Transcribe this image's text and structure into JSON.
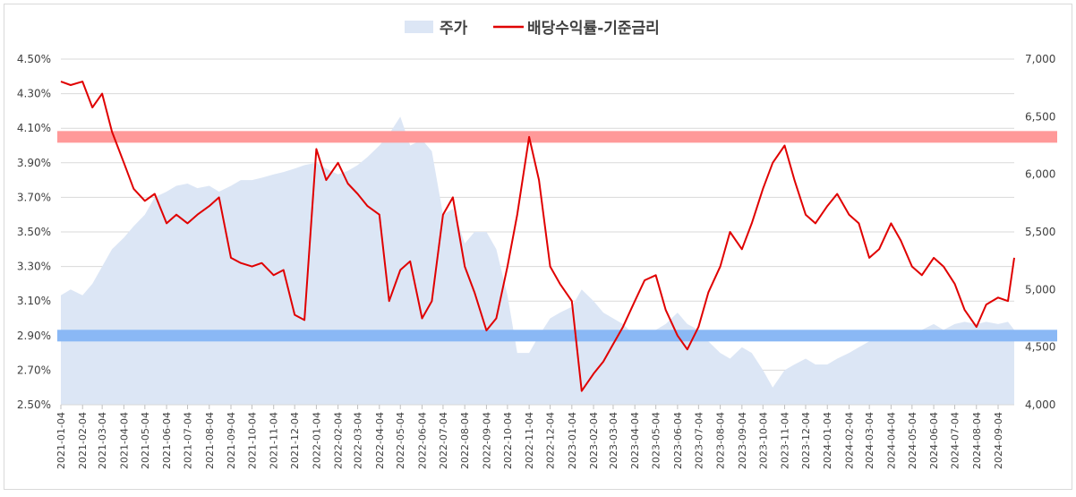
{
  "chart_data": {
    "type": "area",
    "title": "",
    "legend_position": "top-center",
    "grid": true,
    "series": [
      {
        "name": "주가",
        "kind": "area",
        "axis": "right",
        "color": "#dce6f5",
        "points": [
          [
            "2021-01-04",
            4950
          ],
          [
            "2021-01-18",
            5000
          ],
          [
            "2021-02-04",
            4950
          ],
          [
            "2021-02-18",
            5050
          ],
          [
            "2021-03-04",
            5200
          ],
          [
            "2021-03-18",
            5350
          ],
          [
            "2021-04-04",
            5450
          ],
          [
            "2021-04-18",
            5550
          ],
          [
            "2021-05-04",
            5650
          ],
          [
            "2021-05-18",
            5800
          ],
          [
            "2021-06-04",
            5850
          ],
          [
            "2021-06-18",
            5900
          ],
          [
            "2021-07-04",
            5920
          ],
          [
            "2021-07-18",
            5880
          ],
          [
            "2021-08-04",
            5900
          ],
          [
            "2021-08-18",
            5850
          ],
          [
            "2021-09-04",
            5900
          ],
          [
            "2021-09-18",
            5950
          ],
          [
            "2021-10-04",
            5950
          ],
          [
            "2021-10-18",
            5970
          ],
          [
            "2021-11-04",
            6000
          ],
          [
            "2021-11-18",
            6020
          ],
          [
            "2021-12-04",
            6050
          ],
          [
            "2021-12-18",
            6080
          ],
          [
            "2022-01-04",
            6100
          ],
          [
            "2022-01-18",
            6050
          ],
          [
            "2022-02-04",
            6000
          ],
          [
            "2022-02-18",
            6030
          ],
          [
            "2022-03-04",
            6080
          ],
          [
            "2022-03-18",
            6150
          ],
          [
            "2022-04-04",
            6250
          ],
          [
            "2022-04-18",
            6350
          ],
          [
            "2022-05-04",
            6500
          ],
          [
            "2022-05-18",
            6250
          ],
          [
            "2022-06-04",
            6300
          ],
          [
            "2022-06-18",
            6200
          ],
          [
            "2022-07-04",
            5650
          ],
          [
            "2022-07-18",
            5700
          ],
          [
            "2022-08-04",
            5400
          ],
          [
            "2022-08-18",
            5500
          ],
          [
            "2022-09-04",
            5500
          ],
          [
            "2022-09-18",
            5350
          ],
          [
            "2022-10-04",
            4950
          ],
          [
            "2022-10-18",
            4450
          ],
          [
            "2022-11-04",
            4450
          ],
          [
            "2022-11-18",
            4600
          ],
          [
            "2022-12-04",
            4750
          ],
          [
            "2022-12-18",
            4800
          ],
          [
            "2023-01-04",
            4850
          ],
          [
            "2023-01-18",
            5000
          ],
          [
            "2023-02-04",
            4900
          ],
          [
            "2023-02-18",
            4800
          ],
          [
            "2023-03-04",
            4750
          ],
          [
            "2023-03-18",
            4700
          ],
          [
            "2023-04-04",
            4600
          ],
          [
            "2023-04-18",
            4550
          ],
          [
            "2023-05-04",
            4650
          ],
          [
            "2023-05-18",
            4700
          ],
          [
            "2023-06-04",
            4800
          ],
          [
            "2023-06-18",
            4700
          ],
          [
            "2023-07-04",
            4650
          ],
          [
            "2023-07-18",
            4550
          ],
          [
            "2023-08-04",
            4450
          ],
          [
            "2023-08-18",
            4400
          ],
          [
            "2023-09-04",
            4500
          ],
          [
            "2023-09-18",
            4450
          ],
          [
            "2023-10-04",
            4300
          ],
          [
            "2023-10-18",
            4150
          ],
          [
            "2023-11-04",
            4300
          ],
          [
            "2023-11-18",
            4350
          ],
          [
            "2023-12-04",
            4400
          ],
          [
            "2023-12-18",
            4350
          ],
          [
            "2024-01-04",
            4350
          ],
          [
            "2024-01-18",
            4400
          ],
          [
            "2024-02-04",
            4450
          ],
          [
            "2024-02-18",
            4500
          ],
          [
            "2024-03-04",
            4550
          ],
          [
            "2024-03-18",
            4600
          ],
          [
            "2024-04-04",
            4600
          ],
          [
            "2024-04-18",
            4550
          ],
          [
            "2024-05-04",
            4600
          ],
          [
            "2024-05-18",
            4650
          ],
          [
            "2024-06-04",
            4700
          ],
          [
            "2024-06-18",
            4650
          ],
          [
            "2024-07-04",
            4700
          ],
          [
            "2024-07-18",
            4720
          ],
          [
            "2024-08-04",
            4700
          ],
          [
            "2024-08-18",
            4720
          ],
          [
            "2024-09-04",
            4700
          ],
          [
            "2024-09-18",
            4720
          ],
          [
            "2024-09-27",
            4650
          ]
        ]
      },
      {
        "name": "배당수익률-기준금리",
        "kind": "line",
        "axis": "left",
        "color": "#e00000",
        "points": [
          [
            "2021-01-04",
            4.37
          ],
          [
            "2021-01-18",
            4.35
          ],
          [
            "2021-02-04",
            4.37
          ],
          [
            "2021-02-18",
            4.22
          ],
          [
            "2021-03-04",
            4.3
          ],
          [
            "2021-03-18",
            4.08
          ],
          [
            "2021-04-04",
            3.9
          ],
          [
            "2021-04-18",
            3.75
          ],
          [
            "2021-05-04",
            3.68
          ],
          [
            "2021-05-18",
            3.72
          ],
          [
            "2021-06-04",
            3.55
          ],
          [
            "2021-06-18",
            3.6
          ],
          [
            "2021-07-04",
            3.55
          ],
          [
            "2021-07-18",
            3.6
          ],
          [
            "2021-08-04",
            3.65
          ],
          [
            "2021-08-18",
            3.7
          ],
          [
            "2021-09-04",
            3.35
          ],
          [
            "2021-09-18",
            3.32
          ],
          [
            "2021-10-04",
            3.3
          ],
          [
            "2021-10-18",
            3.32
          ],
          [
            "2021-11-04",
            3.25
          ],
          [
            "2021-11-18",
            3.28
          ],
          [
            "2021-12-04",
            3.02
          ],
          [
            "2021-12-18",
            2.99
          ],
          [
            "2022-01-04",
            3.98
          ],
          [
            "2022-01-18",
            3.8
          ],
          [
            "2022-02-04",
            3.9
          ],
          [
            "2022-02-18",
            3.78
          ],
          [
            "2022-03-04",
            3.72
          ],
          [
            "2022-03-18",
            3.65
          ],
          [
            "2022-04-04",
            3.6
          ],
          [
            "2022-04-18",
            3.1
          ],
          [
            "2022-05-04",
            3.28
          ],
          [
            "2022-05-18",
            3.33
          ],
          [
            "2022-06-04",
            3.0
          ],
          [
            "2022-06-18",
            3.1
          ],
          [
            "2022-07-04",
            3.6
          ],
          [
            "2022-07-18",
            3.7
          ],
          [
            "2022-08-04",
            3.3
          ],
          [
            "2022-08-18",
            3.15
          ],
          [
            "2022-09-04",
            2.93
          ],
          [
            "2022-09-18",
            3.0
          ],
          [
            "2022-10-04",
            3.3
          ],
          [
            "2022-10-18",
            3.6
          ],
          [
            "2022-11-04",
            4.05
          ],
          [
            "2022-11-18",
            3.8
          ],
          [
            "2022-12-04",
            3.3
          ],
          [
            "2022-12-18",
            3.2
          ],
          [
            "2023-01-04",
            3.1
          ],
          [
            "2023-01-18",
            2.58
          ],
          [
            "2023-02-04",
            2.68
          ],
          [
            "2023-02-18",
            2.75
          ],
          [
            "2023-03-04",
            2.85
          ],
          [
            "2023-03-18",
            2.95
          ],
          [
            "2023-04-04",
            3.1
          ],
          [
            "2023-04-18",
            3.22
          ],
          [
            "2023-05-04",
            3.25
          ],
          [
            "2023-05-18",
            3.05
          ],
          [
            "2023-06-04",
            2.9
          ],
          [
            "2023-06-18",
            2.82
          ],
          [
            "2023-07-04",
            2.95
          ],
          [
            "2023-07-18",
            3.15
          ],
          [
            "2023-08-04",
            3.3
          ],
          [
            "2023-08-18",
            3.5
          ],
          [
            "2023-09-04",
            3.4
          ],
          [
            "2023-09-18",
            3.55
          ],
          [
            "2023-10-04",
            3.75
          ],
          [
            "2023-10-18",
            3.9
          ],
          [
            "2023-11-04",
            4.0
          ],
          [
            "2023-11-18",
            3.8
          ],
          [
            "2023-12-04",
            3.6
          ],
          [
            "2023-12-18",
            3.55
          ],
          [
            "2024-01-04",
            3.65
          ],
          [
            "2024-01-18",
            3.72
          ],
          [
            "2024-02-04",
            3.6
          ],
          [
            "2024-02-18",
            3.55
          ],
          [
            "2024-03-04",
            3.35
          ],
          [
            "2024-03-18",
            3.4
          ],
          [
            "2024-04-04",
            3.55
          ],
          [
            "2024-04-18",
            3.45
          ],
          [
            "2024-05-04",
            3.3
          ],
          [
            "2024-05-18",
            3.25
          ],
          [
            "2024-06-04",
            3.35
          ],
          [
            "2024-06-18",
            3.3
          ],
          [
            "2024-07-04",
            3.2
          ],
          [
            "2024-07-18",
            3.05
          ],
          [
            "2024-08-04",
            2.95
          ],
          [
            "2024-08-18",
            3.08
          ],
          [
            "2024-09-04",
            3.12
          ],
          [
            "2024-09-18",
            3.1
          ],
          [
            "2024-09-27",
            3.35
          ]
        ]
      }
    ],
    "bands": [
      {
        "value": 4.05,
        "color": "#ff9999",
        "axis": "left"
      },
      {
        "value": 2.9,
        "color": "#8ab8f5",
        "axis": "left"
      }
    ],
    "y_left": {
      "ylim": [
        2.5,
        4.5
      ],
      "ticks": [
        "4.50%",
        "4.30%",
        "4.10%",
        "3.90%",
        "3.70%",
        "3.50%",
        "3.30%",
        "3.10%",
        "2.90%",
        "2.70%",
        "2.50%"
      ],
      "tick_values": [
        4.5,
        4.3,
        4.1,
        3.9,
        3.7,
        3.5,
        3.3,
        3.1,
        2.9,
        2.7,
        2.5
      ]
    },
    "y_right": {
      "ylim": [
        4000,
        7000
      ],
      "ticks": [
        "7,000",
        "6,500",
        "6,000",
        "5,500",
        "5,000",
        "4,500",
        "4,000"
      ],
      "tick_values": [
        7000,
        6500,
        6000,
        5500,
        5000,
        4500,
        4000
      ]
    },
    "x_axis": {
      "start": "2021-01-04",
      "end": "2024-09-27",
      "ticks": [
        "2021-01-04",
        "2021-02-04",
        "2021-03-04",
        "2021-04-04",
        "2021-05-04",
        "2021-06-04",
        "2021-07-04",
        "2021-08-04",
        "2021-09-04",
        "2021-10-04",
        "2021-11-04",
        "2021-12-04",
        "2022-01-04",
        "2022-02-04",
        "2022-03-04",
        "2022-04-04",
        "2022-05-04",
        "2022-06-04",
        "2022-07-04",
        "2022-08-04",
        "2022-09-04",
        "2022-10-04",
        "2022-11-04",
        "2022-12-04",
        "2023-01-04",
        "2023-02-04",
        "2023-03-04",
        "2023-04-04",
        "2023-05-04",
        "2023-06-04",
        "2023-07-04",
        "2023-08-04",
        "2023-09-04",
        "2023-10-04",
        "2023-11-04",
        "2023-12-04",
        "2024-01-04",
        "2024-02-04",
        "2024-03-04",
        "2024-04-04",
        "2024-05-04",
        "2024-06-04",
        "2024-07-04",
        "2024-08-04",
        "2024-09-04"
      ]
    }
  }
}
